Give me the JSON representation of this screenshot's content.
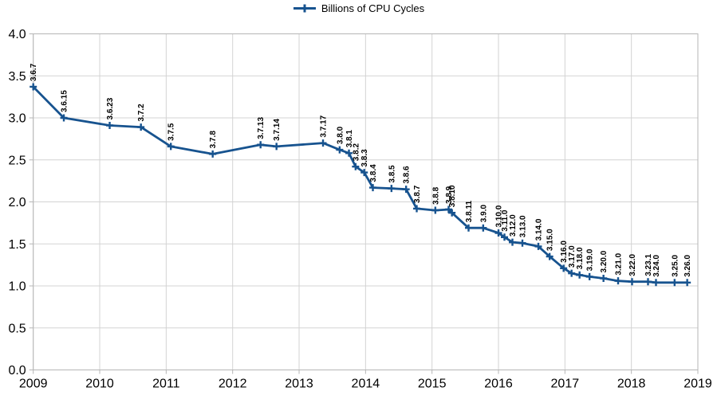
{
  "legend": {
    "label": "Billions of CPU Cycles"
  },
  "chart_data": {
    "type": "line",
    "title": "",
    "legend_position": "top-center",
    "grid": true,
    "background_color": "#ffffff",
    "grid_color": "#d3d3d3",
    "axis_color": "#b5b5b5",
    "text_color": "#000000",
    "data_label_color": "#000000",
    "xlim": [
      2009,
      2019
    ],
    "ylim": [
      0.0,
      4.0
    ],
    "x_ticks": [
      {
        "value": 2009,
        "label": "2009"
      },
      {
        "value": 2010,
        "label": "2010"
      },
      {
        "value": 2011,
        "label": "2011"
      },
      {
        "value": 2012,
        "label": "2012"
      },
      {
        "value": 2013,
        "label": "2013"
      },
      {
        "value": 2014,
        "label": "2014"
      },
      {
        "value": 2015,
        "label": "2015"
      },
      {
        "value": 2016,
        "label": "2016"
      },
      {
        "value": 2017,
        "label": "2017"
      },
      {
        "value": 2018,
        "label": "2018"
      },
      {
        "value": 2019,
        "label": "2019"
      }
    ],
    "y_ticks": [
      {
        "value": 0.0,
        "label": "0.0"
      },
      {
        "value": 0.5,
        "label": "0.5"
      },
      {
        "value": 1.0,
        "label": "1.0"
      },
      {
        "value": 1.5,
        "label": "1.5"
      },
      {
        "value": 2.0,
        "label": "2.0"
      },
      {
        "value": 2.5,
        "label": "2.5"
      },
      {
        "value": 3.0,
        "label": "3.0"
      },
      {
        "value": 3.5,
        "label": "3.5"
      },
      {
        "value": 4.0,
        "label": "4.0"
      }
    ],
    "series": [
      {
        "name": "Billions of CPU Cycles",
        "color": "#17538f",
        "marker": "plus",
        "points": [
          {
            "label": "3.6.7",
            "x": 2009.0,
            "y": 3.37
          },
          {
            "label": "3.6.15",
            "x": 2009.46,
            "y": 3.0
          },
          {
            "label": "3.6.23",
            "x": 2010.15,
            "y": 2.91
          },
          {
            "label": "3.7.2",
            "x": 2010.62,
            "y": 2.89
          },
          {
            "label": "3.7.5",
            "x": 2011.07,
            "y": 2.66
          },
          {
            "label": "3.7.8",
            "x": 2011.7,
            "y": 2.57
          },
          {
            "label": "3.7.13",
            "x": 2012.42,
            "y": 2.68
          },
          {
            "label": "3.7.14",
            "x": 2012.66,
            "y": 2.66
          },
          {
            "label": "3.7.17",
            "x": 2013.36,
            "y": 2.7
          },
          {
            "label": "3.8.0",
            "x": 2013.61,
            "y": 2.62
          },
          {
            "label": "3.8.1",
            "x": 2013.75,
            "y": 2.58
          },
          {
            "label": "3.8.2",
            "x": 2013.85,
            "y": 2.42
          },
          {
            "label": "3.8.3",
            "x": 2013.98,
            "y": 2.35
          },
          {
            "label": "3.8.4",
            "x": 2014.11,
            "y": 2.17
          },
          {
            "label": "3.8.5",
            "x": 2014.39,
            "y": 2.16
          },
          {
            "label": "3.8.6",
            "x": 2014.61,
            "y": 2.15
          },
          {
            "label": "3.8.7",
            "x": 2014.77,
            "y": 1.92
          },
          {
            "label": "3.8.8",
            "x": 2015.05,
            "y": 1.9
          },
          {
            "label": "3.8.9",
            "x": 2015.25,
            "y": 1.91
          },
          {
            "label": "3.8.10",
            "x": 2015.3,
            "y": 1.87
          },
          {
            "label": "3.8.11",
            "x": 2015.55,
            "y": 1.69
          },
          {
            "label": "3.9.0",
            "x": 2015.77,
            "y": 1.69
          },
          {
            "label": "3.10.0",
            "x": 2016.0,
            "y": 1.63
          },
          {
            "label": "3.11.0",
            "x": 2016.09,
            "y": 1.58
          },
          {
            "label": "3.12.0",
            "x": 2016.21,
            "y": 1.52
          },
          {
            "label": "3.13.0",
            "x": 2016.36,
            "y": 1.51
          },
          {
            "label": "3.14.0",
            "x": 2016.6,
            "y": 1.47
          },
          {
            "label": "3.15.0",
            "x": 2016.77,
            "y": 1.35
          },
          {
            "label": "3.16.0",
            "x": 2016.98,
            "y": 1.21
          },
          {
            "label": "3.17.0",
            "x": 2017.1,
            "y": 1.15
          },
          {
            "label": "3.18.0",
            "x": 2017.22,
            "y": 1.13
          },
          {
            "label": "3.19.0",
            "x": 2017.37,
            "y": 1.11
          },
          {
            "label": "3.20.0",
            "x": 2017.58,
            "y": 1.09
          },
          {
            "label": "3.21.0",
            "x": 2017.8,
            "y": 1.06
          },
          {
            "label": "3.22.0",
            "x": 2018.01,
            "y": 1.05
          },
          {
            "label": "3.23.1",
            "x": 2018.25,
            "y": 1.05
          },
          {
            "label": "3.24.0",
            "x": 2018.37,
            "y": 1.04
          },
          {
            "label": "3.25.0",
            "x": 2018.65,
            "y": 1.04
          },
          {
            "label": "3.26.0",
            "x": 2018.84,
            "y": 1.04
          }
        ]
      }
    ]
  }
}
